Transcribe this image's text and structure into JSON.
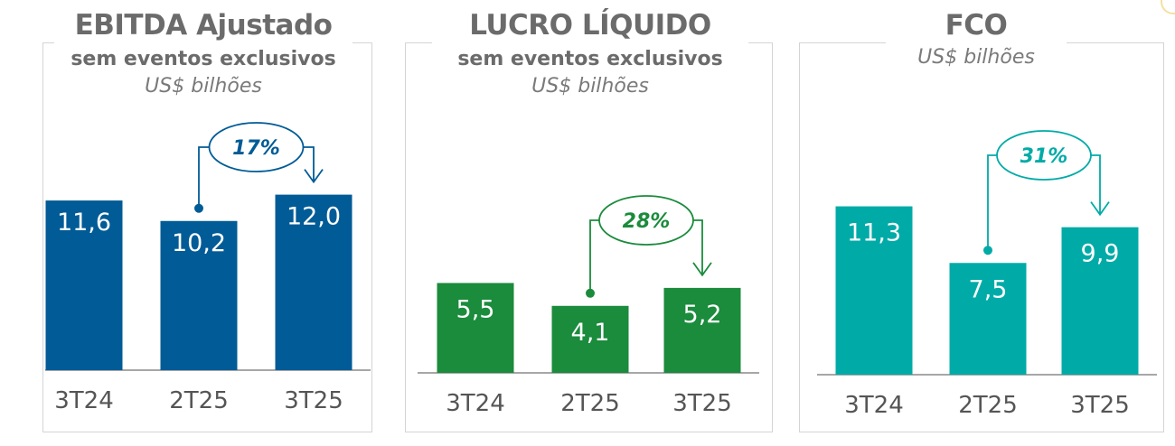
{
  "colors": {
    "ebitda": "#005b96",
    "lucro": "#1b8b3c",
    "fco": "#00aba7",
    "axis": "#8a8a8a",
    "tick": "#555555"
  },
  "panels": [
    {
      "id": "ebitda",
      "title": "EBITDA Ajustado",
      "subtitle": "sem eventos exclusivos",
      "unit": "US$ bilhões",
      "growth": "17%"
    },
    {
      "id": "lucro",
      "title": "LUCRO LÍQUIDO",
      "subtitle": "sem eventos exclusivos",
      "unit": "US$ bilhões",
      "growth": "28%"
    },
    {
      "id": "fco",
      "title": "FCO",
      "subtitle": "",
      "unit": "US$ bilhões",
      "growth": "31%"
    }
  ],
  "chart_data": [
    {
      "type": "bar",
      "title": "EBITDA Ajustado",
      "subtitle": "sem eventos exclusivos",
      "ylabel": "US$ bilhões",
      "categories": [
        "3T24",
        "2T25",
        "3T25"
      ],
      "values": [
        11.6,
        10.2,
        12.0
      ],
      "value_labels": [
        "11,6",
        "10,2",
        "12,0"
      ],
      "annotation": {
        "from": "2T25",
        "to": "3T25",
        "label": "17%"
      },
      "color": "#005b96"
    },
    {
      "type": "bar",
      "title": "LUCRO LÍQUIDO",
      "subtitle": "sem eventos exclusivos",
      "ylabel": "US$ bilhões",
      "categories": [
        "3T24",
        "2T25",
        "3T25"
      ],
      "values": [
        5.5,
        4.1,
        5.2
      ],
      "value_labels": [
        "5,5",
        "4,1",
        "5,2"
      ],
      "annotation": {
        "from": "2T25",
        "to": "3T25",
        "label": "28%"
      },
      "color": "#1b8b3c"
    },
    {
      "type": "bar",
      "title": "FCO",
      "subtitle": "",
      "ylabel": "US$ bilhões",
      "categories": [
        "3T24",
        "2T25",
        "3T25"
      ],
      "values": [
        11.3,
        7.5,
        9.9
      ],
      "value_labels": [
        "11,3",
        "7,5",
        "9,9"
      ],
      "annotation": {
        "from": "2T25",
        "to": "3T25",
        "label": "31%"
      },
      "color": "#00aba7"
    }
  ]
}
